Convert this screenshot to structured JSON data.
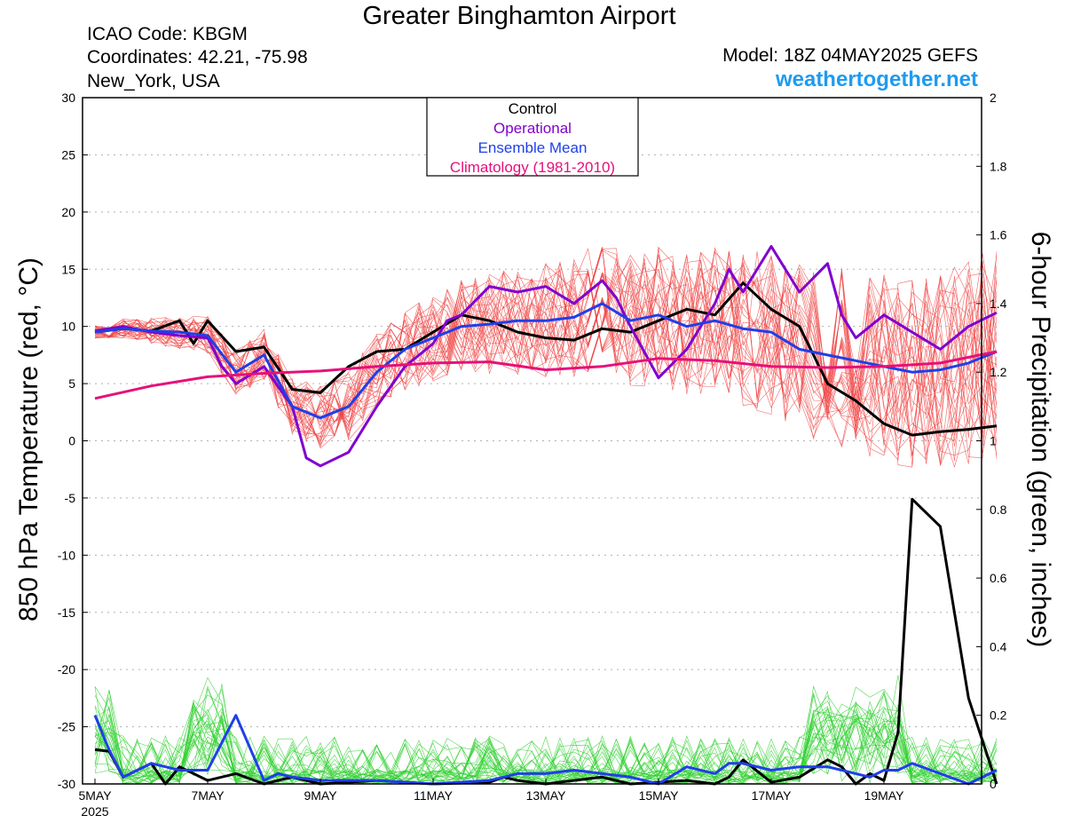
{
  "header": {
    "title": "Greater Binghamton Airport",
    "icao": "ICAO Code: KBGM",
    "coordinates": "Coordinates: 42.21, -75.98",
    "location": "New_York, USA",
    "model": "Model: 18Z 04MAY2025 GEFS",
    "site": "weathertogether.net"
  },
  "colors": {
    "control": "#000000",
    "operational": "#8000d0",
    "ensemble_mean": "#1f3fe8",
    "climatology": "#e6107a",
    "members_temp": "#f04040",
    "members_precip": "#30d030",
    "site": "#1e9bf0"
  },
  "chart_data": {
    "type": "line",
    "ylabel": "850 hPa Temperature (red, °C)",
    "y2label": "6-hour Precipitation (green, inches)",
    "ylim": [
      -30,
      30
    ],
    "y2lim": [
      0,
      2
    ],
    "yticks": [
      "30",
      "25",
      "20",
      "15",
      "10",
      "5",
      "0",
      "-5",
      "-10",
      "-15",
      "-20",
      "-25",
      "-30"
    ],
    "y2ticks": [
      "2",
      "1.8",
      "1.6",
      "1.4",
      "1.2",
      "1",
      "0.8",
      "0.6",
      "0.4",
      "0.2",
      "0"
    ],
    "xlim": [
      0,
      16
    ],
    "xtick_positions": [
      0,
      2,
      4,
      6,
      8,
      10,
      12,
      14
    ],
    "xtick_labels": [
      "5MAY",
      "7MAY",
      "9MAY",
      "11MAY",
      "13MAY",
      "15MAY",
      "17MAY",
      "19MAY"
    ],
    "xtick_year": "2025",
    "grid": true,
    "legend": {
      "placement": "top-center",
      "entries": [
        "Control",
        "Operational",
        "Ensemble Mean",
        "Climatology (1981-2010)"
      ]
    },
    "temperature_series": [
      {
        "name": "Control",
        "x": [
          0,
          0.5,
          1,
          1.5,
          1.75,
          2,
          2.5,
          3,
          3.5,
          4,
          4.5,
          5,
          5.5,
          6,
          6.5,
          7,
          7.5,
          8,
          8.5,
          9,
          9.5,
          10,
          10.5,
          11,
          11.5,
          12,
          12.5,
          13,
          13.5,
          14,
          14.5,
          15,
          15.5,
          16
        ],
        "y": [
          9.5,
          9.8,
          9.6,
          10.5,
          8.5,
          10.5,
          7.8,
          8.2,
          4.5,
          4.2,
          6.5,
          7.8,
          8.0,
          9.5,
          11.0,
          10.5,
          9.5,
          9.0,
          8.8,
          9.8,
          9.5,
          10.5,
          11.5,
          11.0,
          13.8,
          11.5,
          10.0,
          5.0,
          3.5,
          1.5,
          0.5,
          0.8,
          1.0,
          1.3
        ]
      },
      {
        "name": "Operational",
        "x": [
          0,
          0.5,
          1,
          1.5,
          2,
          2.25,
          2.5,
          3,
          3.5,
          3.75,
          4,
          4.5,
          5,
          5.5,
          6,
          6.25,
          6.5,
          7,
          7.5,
          8,
          8.5,
          9,
          9.25,
          9.5,
          10,
          10.5,
          11,
          11.25,
          11.5,
          12,
          12.5,
          13,
          13.25,
          13.5,
          14,
          14.5,
          15,
          15.5,
          16
        ],
        "y": [
          9.6,
          10.0,
          9.5,
          9.2,
          9.0,
          6.5,
          5.0,
          6.5,
          3.0,
          -1.5,
          -2.2,
          -1.0,
          3.0,
          6.5,
          8.5,
          10.5,
          11.0,
          13.5,
          13.0,
          13.5,
          12.0,
          14.0,
          12.5,
          10.0,
          5.5,
          8.0,
          12.0,
          15.0,
          13.0,
          17.0,
          13.0,
          15.5,
          11.0,
          9.0,
          11.0,
          9.5,
          8.0,
          10.0,
          11.2
        ]
      },
      {
        "name": "Ensemble Mean",
        "x": [
          0,
          0.5,
          1,
          1.5,
          2,
          2.5,
          3,
          3.5,
          4,
          4.5,
          5,
          5.5,
          6,
          6.5,
          7,
          7.5,
          8,
          8.5,
          9,
          9.5,
          10,
          10.5,
          11,
          11.5,
          12,
          12.5,
          13,
          13.5,
          14,
          14.5,
          15,
          15.5,
          16
        ],
        "y": [
          9.5,
          9.8,
          9.6,
          9.5,
          9.2,
          6.0,
          7.5,
          3.0,
          2.0,
          3.0,
          6.0,
          8.0,
          9.0,
          10.0,
          10.2,
          10.5,
          10.5,
          10.8,
          12.0,
          10.5,
          11.0,
          10.0,
          10.5,
          9.8,
          9.5,
          8.0,
          7.5,
          7.0,
          6.5,
          6.0,
          6.2,
          6.8,
          7.8
        ]
      },
      {
        "name": "Climatology (1981-2010)",
        "x": [
          0,
          1,
          2,
          3,
          4,
          5,
          6,
          7,
          8,
          9,
          10,
          11,
          12,
          13,
          14,
          15,
          16
        ],
        "y": [
          3.7,
          4.8,
          5.6,
          5.9,
          6.1,
          6.5,
          6.8,
          6.9,
          6.2,
          6.5,
          7.2,
          7.0,
          6.5,
          6.4,
          6.5,
          6.8,
          7.8
        ]
      }
    ],
    "precipitation_series": [
      {
        "name": "Control",
        "x": [
          0,
          0.25,
          0.5,
          1,
          1.25,
          1.5,
          2,
          2.5,
          3,
          3.25,
          3.5,
          4,
          5,
          6,
          7,
          7.25,
          7.5,
          8,
          8.5,
          9,
          9.5,
          10,
          10.5,
          11,
          11.25,
          11.5,
          12,
          12.5,
          13,
          13.25,
          13.5,
          13.75,
          14,
          14.25,
          14.5,
          15,
          15.5,
          16
        ],
        "y": [
          0.1,
          0.095,
          0.02,
          0.06,
          0.0,
          0.05,
          0.01,
          0.03,
          0.0,
          0.01,
          0.02,
          0.0,
          0.01,
          0.0,
          0.005,
          0.02,
          0.01,
          0.0,
          0.01,
          0.02,
          0.0,
          0.005,
          0.01,
          0.0,
          0.02,
          0.07,
          0.005,
          0.02,
          0.07,
          0.05,
          0.0,
          0.03,
          0.01,
          0.15,
          0.83,
          0.75,
          0.25,
          0.0
        ]
      },
      {
        "name": "Ensemble Mean",
        "x": [
          0,
          0.25,
          0.5,
          1,
          1.25,
          1.5,
          2,
          2.5,
          3,
          3.25,
          3.5,
          4,
          5,
          6,
          7,
          7.25,
          7.5,
          8,
          8.5,
          9,
          9.5,
          10,
          10.5,
          11,
          11.25,
          11.5,
          12,
          12.5,
          13,
          13.25,
          13.5,
          13.75,
          14,
          14.25,
          14.5,
          15,
          15.5,
          16
        ],
        "y": [
          0.2,
          0.1,
          0.02,
          0.06,
          0.05,
          0.04,
          0.04,
          0.2,
          0.01,
          0.03,
          0.02,
          0.01,
          0.01,
          0.0,
          0.01,
          0.02,
          0.03,
          0.03,
          0.04,
          0.03,
          0.02,
          0.0,
          0.05,
          0.03,
          0.06,
          0.06,
          0.04,
          0.05,
          0.05,
          0.04,
          0.03,
          0.02,
          0.04,
          0.04,
          0.06,
          0.03,
          0.0,
          0.04
        ]
      }
    ]
  }
}
